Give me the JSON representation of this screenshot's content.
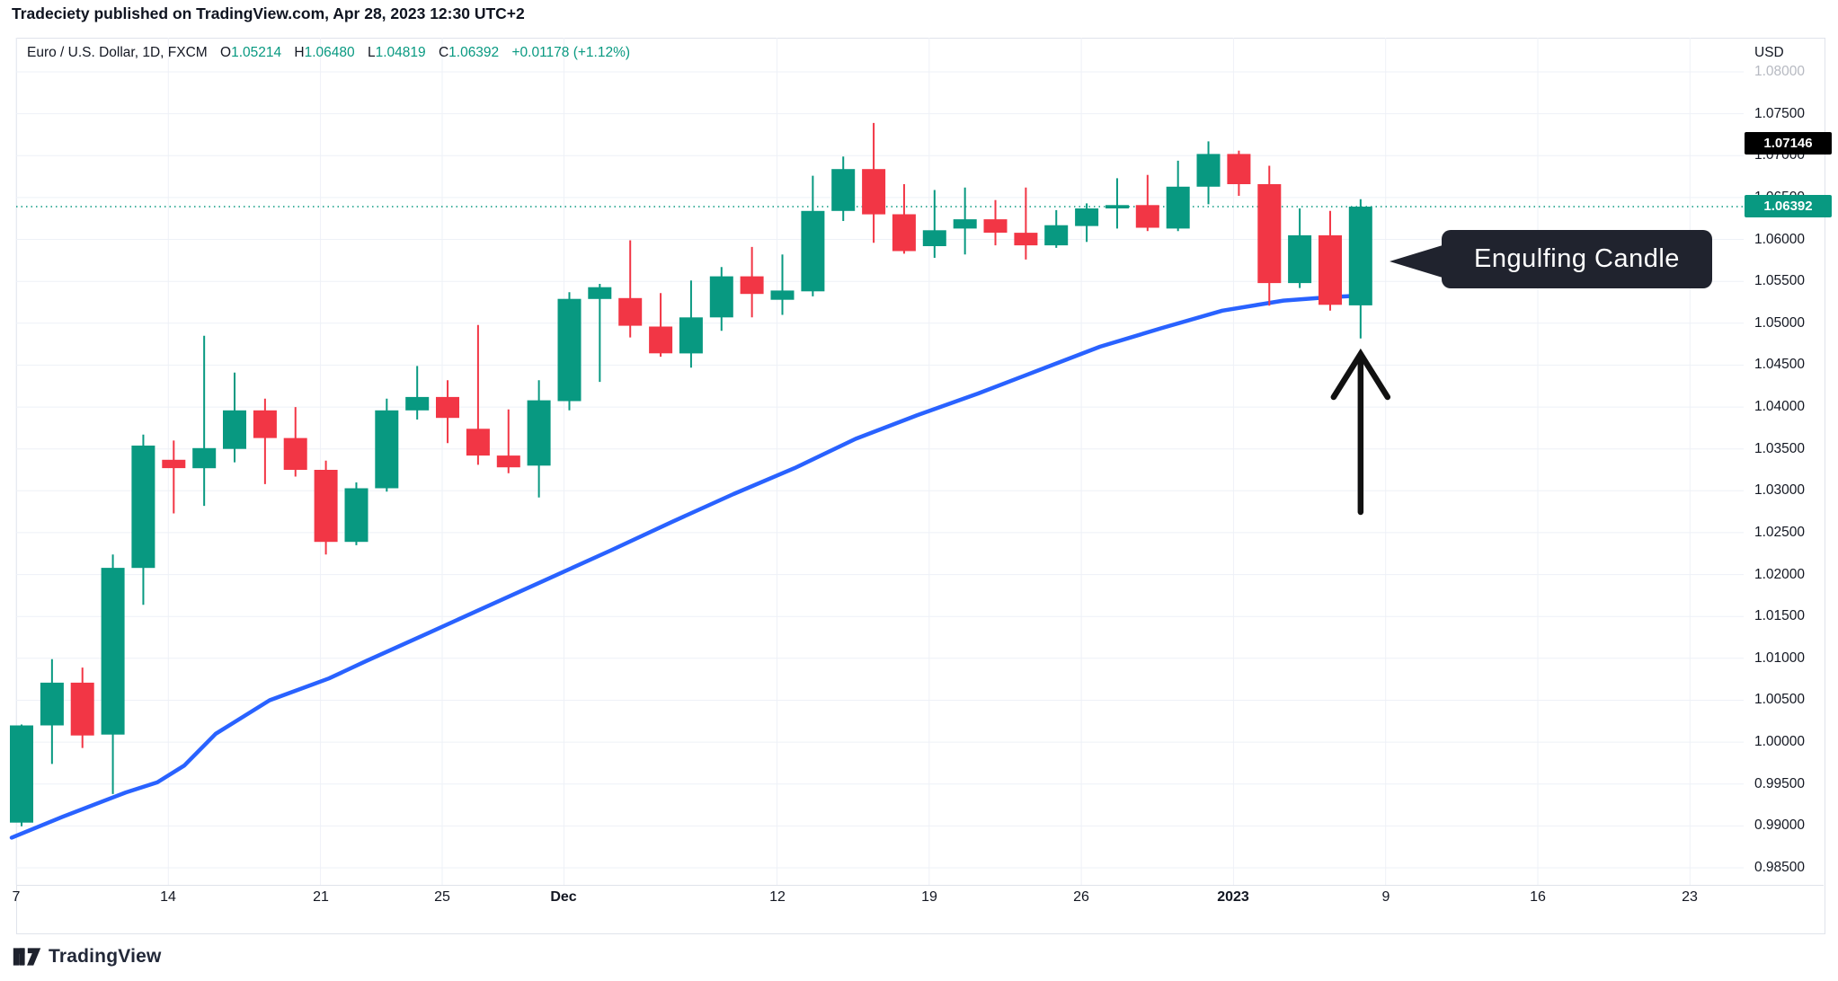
{
  "published_bar": {
    "text": "Tradeciety published on TradingView.com, Apr 28, 2023 12:30 UTC+2"
  },
  "legend": {
    "symbol_title": "Euro / U.S. Dollar, 1D, FXCM",
    "o_label": "O",
    "o_value": "1.05214",
    "h_label": "H",
    "h_value": "1.06480",
    "l_label": "L",
    "l_value": "1.04819",
    "c_label": "C",
    "c_value": "1.06392",
    "change": "+0.01178 (+1.12%)"
  },
  "price_axis": {
    "currency_label": "USD",
    "labels": [
      {
        "text": "1.08000",
        "price": 1.08,
        "muted": true
      },
      {
        "text": "1.07500",
        "price": 1.075,
        "muted": false
      },
      {
        "text": "1.07000",
        "price": 1.07,
        "muted": false
      },
      {
        "text": "1.06500",
        "price": 1.065,
        "muted": false
      },
      {
        "text": "1.06000",
        "price": 1.06,
        "muted": false
      },
      {
        "text": "1.05500",
        "price": 1.055,
        "muted": false
      },
      {
        "text": "1.05000",
        "price": 1.05,
        "muted": false
      },
      {
        "text": "1.04500",
        "price": 1.045,
        "muted": false
      },
      {
        "text": "1.04000",
        "price": 1.04,
        "muted": false
      },
      {
        "text": "1.03500",
        "price": 1.035,
        "muted": false
      },
      {
        "text": "1.03000",
        "price": 1.03,
        "muted": false
      },
      {
        "text": "1.02500",
        "price": 1.025,
        "muted": false
      },
      {
        "text": "1.02000",
        "price": 1.02,
        "muted": false
      },
      {
        "text": "1.01500",
        "price": 1.015,
        "muted": false
      },
      {
        "text": "1.01000",
        "price": 1.01,
        "muted": false
      },
      {
        "text": "1.00500",
        "price": 1.005,
        "muted": false
      },
      {
        "text": "1.00000",
        "price": 1.0,
        "muted": false
      },
      {
        "text": "0.99500",
        "price": 0.995,
        "muted": false
      },
      {
        "text": "0.99000",
        "price": 0.99,
        "muted": false
      },
      {
        "text": "0.98500",
        "price": 0.985,
        "muted": false
      }
    ],
    "black_badge": {
      "text": "1.07146",
      "price": 1.07146
    },
    "green_badge": {
      "text": "1.06392",
      "price": 1.06392
    }
  },
  "x_axis": {
    "ticks": [
      {
        "text": "7",
        "index": 0,
        "bold": false
      },
      {
        "text": "14",
        "index": 5,
        "bold": false
      },
      {
        "text": "21",
        "index": 10,
        "bold": false
      },
      {
        "text": "25",
        "index": 14,
        "bold": false
      },
      {
        "text": "Dec",
        "index": 18,
        "bold": true
      },
      {
        "text": "12",
        "index": 25,
        "bold": false
      },
      {
        "text": "19",
        "index": 30,
        "bold": false
      },
      {
        "text": "26",
        "index": 35,
        "bold": false
      },
      {
        "text": "2023",
        "index": 40,
        "bold": true
      },
      {
        "text": "9",
        "index": 45,
        "bold": false
      },
      {
        "text": "16",
        "index": 50,
        "bold": false
      },
      {
        "text": "23",
        "index": 55,
        "bold": false
      }
    ]
  },
  "callout": {
    "text": "Engulfing Candle"
  },
  "footer": {
    "logo_text": "TradingView"
  },
  "colors": {
    "up": "#089981",
    "down": "#F23645",
    "ma_line": "#2962FF",
    "close_line": "#089981",
    "grid": "#eef1f7",
    "badge_black": "#000000",
    "badge_green": "#089981",
    "text": "#131722",
    "arrow": "#111111",
    "callout_bg": "#20232e",
    "border": "#e0e3eb"
  },
  "chart_data": {
    "type": "candlestick",
    "title": "Euro / U.S. Dollar, 1D, FXCM",
    "ylabel": "USD",
    "ylim": [
      0.9795,
      1.0845
    ],
    "grid": true,
    "last_close": 1.06392,
    "black_axis_price": 1.07146,
    "candles": [
      {
        "d": "Nov 7",
        "o": 0.9904,
        "h": 1.0021,
        "l": 0.98995,
        "c": 1.002
      },
      {
        "d": "Nov 8",
        "o": 1.002,
        "h": 1.0099,
        "l": 0.9974,
        "c": 1.0071
      },
      {
        "d": "Nov 9",
        "o": 1.0071,
        "h": 1.0089,
        "l": 0.9993,
        "c": 1.0008
      },
      {
        "d": "Nov 10",
        "o": 1.0009,
        "h": 1.0224,
        "l": 0.9938,
        "c": 1.0208
      },
      {
        "d": "Nov 11",
        "o": 1.0208,
        "h": 1.0367,
        "l": 1.0164,
        "c": 1.0354
      },
      {
        "d": "Nov 14",
        "o": 1.0337,
        "h": 1.036,
        "l": 1.0273,
        "c": 1.0327
      },
      {
        "d": "Nov 15",
        "o": 1.0327,
        "h": 1.0485,
        "l": 1.0282,
        "c": 1.0351
      },
      {
        "d": "Nov 16",
        "o": 1.035,
        "h": 1.0441,
        "l": 1.0334,
        "c": 1.0396
      },
      {
        "d": "Nov 17",
        "o": 1.0396,
        "h": 1.041,
        "l": 1.0308,
        "c": 1.0363
      },
      {
        "d": "Nov 18",
        "o": 1.0363,
        "h": 1.04,
        "l": 1.0317,
        "c": 1.0325
      },
      {
        "d": "Nov 21",
        "o": 1.0325,
        "h": 1.0336,
        "l": 1.0224,
        "c": 1.0239
      },
      {
        "d": "Nov 22",
        "o": 1.0239,
        "h": 1.031,
        "l": 1.0235,
        "c": 1.0303
      },
      {
        "d": "Nov 23",
        "o": 1.0303,
        "h": 1.041,
        "l": 1.0299,
        "c": 1.0396
      },
      {
        "d": "Nov 24",
        "o": 1.0396,
        "h": 1.0449,
        "l": 1.0385,
        "c": 1.0412
      },
      {
        "d": "Nov 25",
        "o": 1.0412,
        "h": 1.0432,
        "l": 1.0357,
        "c": 1.0387
      },
      {
        "d": "Nov 28",
        "o": 1.0374,
        "h": 1.0498,
        "l": 1.0331,
        "c": 1.0342
      },
      {
        "d": "Nov 29",
        "o": 1.0342,
        "h": 1.0397,
        "l": 1.0321,
        "c": 1.0328
      },
      {
        "d": "Nov 30",
        "o": 1.033,
        "h": 1.0432,
        "l": 1.0292,
        "c": 1.0408
      },
      {
        "d": "Dec 1",
        "o": 1.0407,
        "h": 1.0537,
        "l": 1.0396,
        "c": 1.0529
      },
      {
        "d": "Dec 2",
        "o": 1.0529,
        "h": 1.0547,
        "l": 1.043,
        "c": 1.0543
      },
      {
        "d": "Dec 5",
        "o": 1.053,
        "h": 1.0599,
        "l": 1.0483,
        "c": 1.0497
      },
      {
        "d": "Dec 6",
        "o": 1.0496,
        "h": 1.0536,
        "l": 1.046,
        "c": 1.0464
      },
      {
        "d": "Dec 7",
        "o": 1.0464,
        "h": 1.0551,
        "l": 1.0447,
        "c": 1.0507
      },
      {
        "d": "Dec 8",
        "o": 1.0507,
        "h": 1.0567,
        "l": 1.0491,
        "c": 1.0556
      },
      {
        "d": "Dec 9",
        "o": 1.0556,
        "h": 1.0591,
        "l": 1.0507,
        "c": 1.0535
      },
      {
        "d": "Dec 12",
        "o": 1.0528,
        "h": 1.0582,
        "l": 1.051,
        "c": 1.0539
      },
      {
        "d": "Dec 13",
        "o": 1.0538,
        "h": 1.0676,
        "l": 1.0532,
        "c": 1.0634
      },
      {
        "d": "Dec 14",
        "o": 1.0634,
        "h": 1.0699,
        "l": 1.0622,
        "c": 1.0684
      },
      {
        "d": "Dec 15",
        "o": 1.0684,
        "h": 1.0739,
        "l": 1.0596,
        "c": 1.063
      },
      {
        "d": "Dec 16",
        "o": 1.063,
        "h": 1.0666,
        "l": 1.0583,
        "c": 1.0586
      },
      {
        "d": "Dec 19",
        "o": 1.0592,
        "h": 1.0659,
        "l": 1.0578,
        "c": 1.0611
      },
      {
        "d": "Dec 20",
        "o": 1.0613,
        "h": 1.0662,
        "l": 1.0582,
        "c": 1.0624
      },
      {
        "d": "Dec 21",
        "o": 1.0624,
        "h": 1.0647,
        "l": 1.0593,
        "c": 1.0608
      },
      {
        "d": "Dec 22",
        "o": 1.0608,
        "h": 1.0662,
        "l": 1.0576,
        "c": 1.0593
      },
      {
        "d": "Dec 23",
        "o": 1.0593,
        "h": 1.0635,
        "l": 1.059,
        "c": 1.0617
      },
      {
        "d": "Dec 26",
        "o": 1.0616,
        "h": 1.0643,
        "l": 1.0597,
        "c": 1.0637
      },
      {
        "d": "Dec 27",
        "o": 1.0637,
        "h": 1.0673,
        "l": 1.0613,
        "c": 1.0641
      },
      {
        "d": "Dec 28",
        "o": 1.0641,
        "h": 1.0677,
        "l": 1.061,
        "c": 1.0614
      },
      {
        "d": "Dec 29",
        "o": 1.0613,
        "h": 1.0694,
        "l": 1.061,
        "c": 1.0663
      },
      {
        "d": "Dec 30",
        "o": 1.0663,
        "h": 1.0717,
        "l": 1.0642,
        "c": 1.0702
      },
      {
        "d": "Jan 2",
        "o": 1.0702,
        "h": 1.0706,
        "l": 1.0652,
        "c": 1.0666
      },
      {
        "d": "Jan 3",
        "o": 1.0666,
        "h": 1.0688,
        "l": 1.0521,
        "c": 1.0548
      },
      {
        "d": "Jan 4",
        "o": 1.0548,
        "h": 1.0637,
        "l": 1.0542,
        "c": 1.0605
      },
      {
        "d": "Jan 5",
        "o": 1.0605,
        "h": 1.0634,
        "l": 1.0515,
        "c": 1.0522
      },
      {
        "d": "Jan 6",
        "o": 1.05214,
        "h": 1.0648,
        "l": 1.04819,
        "c": 1.06392
      }
    ],
    "ma_line": {
      "legend": "moving average",
      "points": [
        [
          13,
          0.9886
        ],
        [
          70,
          0.9911
        ],
        [
          140,
          0.994
        ],
        [
          175,
          0.9952
        ],
        [
          205,
          0.9972
        ],
        [
          240,
          1.001
        ],
        [
          300,
          1.005
        ],
        [
          366,
          1.0076
        ],
        [
          408,
          1.0097
        ],
        [
          476,
          1.013
        ],
        [
          544,
          1.0163
        ],
        [
          612,
          1.0196
        ],
        [
          680,
          1.0229
        ],
        [
          748,
          1.0263
        ],
        [
          816,
          1.0296
        ],
        [
          884,
          1.0327
        ],
        [
          952,
          1.0362
        ],
        [
          1020,
          1.039
        ],
        [
          1088,
          1.0416
        ],
        [
          1156,
          1.0444
        ],
        [
          1224,
          1.0472
        ],
        [
          1292,
          1.0494
        ],
        [
          1360,
          1.0515
        ],
        [
          1428,
          1.0527
        ],
        [
          1478,
          1.0531
        ],
        [
          1514,
          1.0533
        ]
      ]
    },
    "annotation_arrow": {
      "x_index": 44,
      "tip_y_price": 1.0466,
      "note": "points up at engulfing candle low"
    }
  }
}
